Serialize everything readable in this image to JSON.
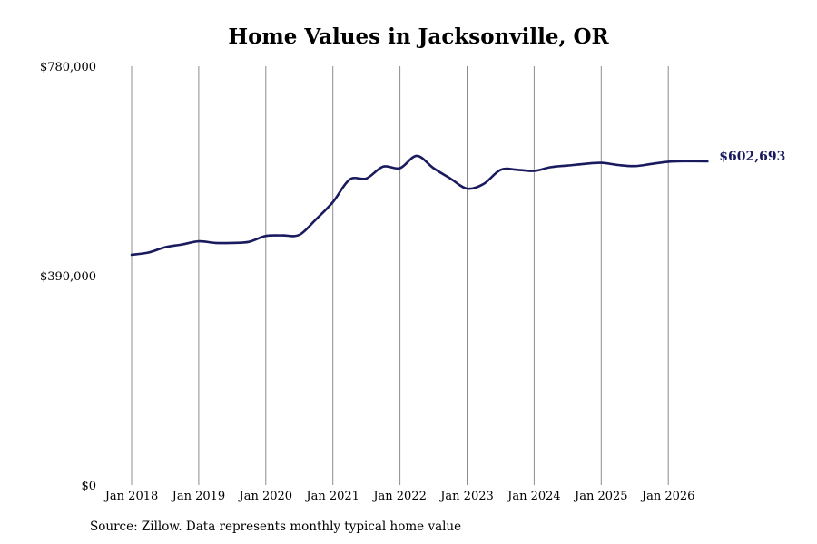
{
  "chart_data": {
    "type": "line",
    "title": "Home Values in Jacksonville, OR",
    "xlabel": "",
    "ylabel": "",
    "x_start": "2018-01",
    "x_end": "2026-08",
    "ylim": [
      0,
      780000
    ],
    "y_ticks": [
      "$0",
      "$390,000",
      "$780,000"
    ],
    "y_tick_values": [
      0,
      390000,
      780000
    ],
    "x_ticks": [
      "Jan 2018",
      "Jan 2019",
      "Jan 2020",
      "Jan 2021",
      "Jan 2022",
      "Jan 2023",
      "Jan 2024",
      "Jan 2025",
      "Jan 2026"
    ],
    "x_tick_dates": [
      "2018-01",
      "2019-01",
      "2020-01",
      "2021-01",
      "2022-01",
      "2023-01",
      "2024-01",
      "2025-01",
      "2026-01"
    ],
    "grid": "vertical",
    "line_color": "#1a1a5e",
    "end_label": "$602,693",
    "series": [
      {
        "x": [
          "2018-01",
          "2018-04",
          "2018-07",
          "2018-10",
          "2019-01",
          "2019-04",
          "2019-07",
          "2019-10",
          "2020-01",
          "2020-04",
          "2020-07",
          "2020-10",
          "2021-01",
          "2021-04",
          "2021-07",
          "2021-10",
          "2022-01",
          "2022-04",
          "2022-07",
          "2022-10",
          "2023-01",
          "2023-04",
          "2023-07",
          "2023-10",
          "2024-01",
          "2024-04",
          "2024-07",
          "2024-10",
          "2025-01",
          "2025-04",
          "2025-07",
          "2025-10",
          "2026-01",
          "2026-04",
          "2026-08"
        ],
        "values": [
          429000,
          433000,
          443000,
          448000,
          454000,
          451000,
          451000,
          453000,
          464000,
          465000,
          466000,
          495000,
          527000,
          569000,
          571000,
          593000,
          590000,
          613000,
          590000,
          571000,
          552000,
          561000,
          587000,
          587000,
          585000,
          592000,
          595000,
          598000,
          600000,
          596000,
          594000,
          598000,
          602000,
          603000,
          602693
        ]
      }
    ]
  },
  "source_note": "Source: Zillow. Data represents monthly typical home value"
}
